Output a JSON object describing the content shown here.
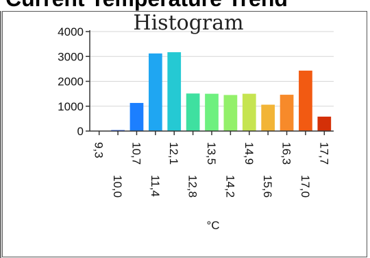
{
  "header": {
    "text": "Current Temperature Trend"
  },
  "chart_data": {
    "type": "bar",
    "title": "Histogram",
    "xlabel": "°C",
    "ylabel": "",
    "ylim": [
      0,
      4000
    ],
    "y_ticks": [
      "4000",
      "3000",
      "2000",
      "1000",
      "0"
    ],
    "y_tick_values": [
      4000,
      3000,
      2000,
      1000,
      0
    ],
    "x_tick_labels": [
      "9,3",
      "10,0",
      "10,7",
      "11,4",
      "12,1",
      "12,8",
      "13,5",
      "14,2",
      "14,9",
      "15,6",
      "16,3",
      "17,0",
      "17,7"
    ],
    "values": [
      0,
      40,
      1130,
      3120,
      3170,
      1510,
      1500,
      1450,
      1500,
      1060,
      1460,
      2430,
      580
    ],
    "colors": [
      "#3a3aff",
      "#2f67ff",
      "#1c7fff",
      "#1fa6f2",
      "#25c9d3",
      "#3fe0a0",
      "#6ef07f",
      "#93f06a",
      "#c6e451",
      "#f2b437",
      "#f78a2a",
      "#f25a12",
      "#d43008"
    ],
    "grid": true,
    "legend": "none"
  }
}
